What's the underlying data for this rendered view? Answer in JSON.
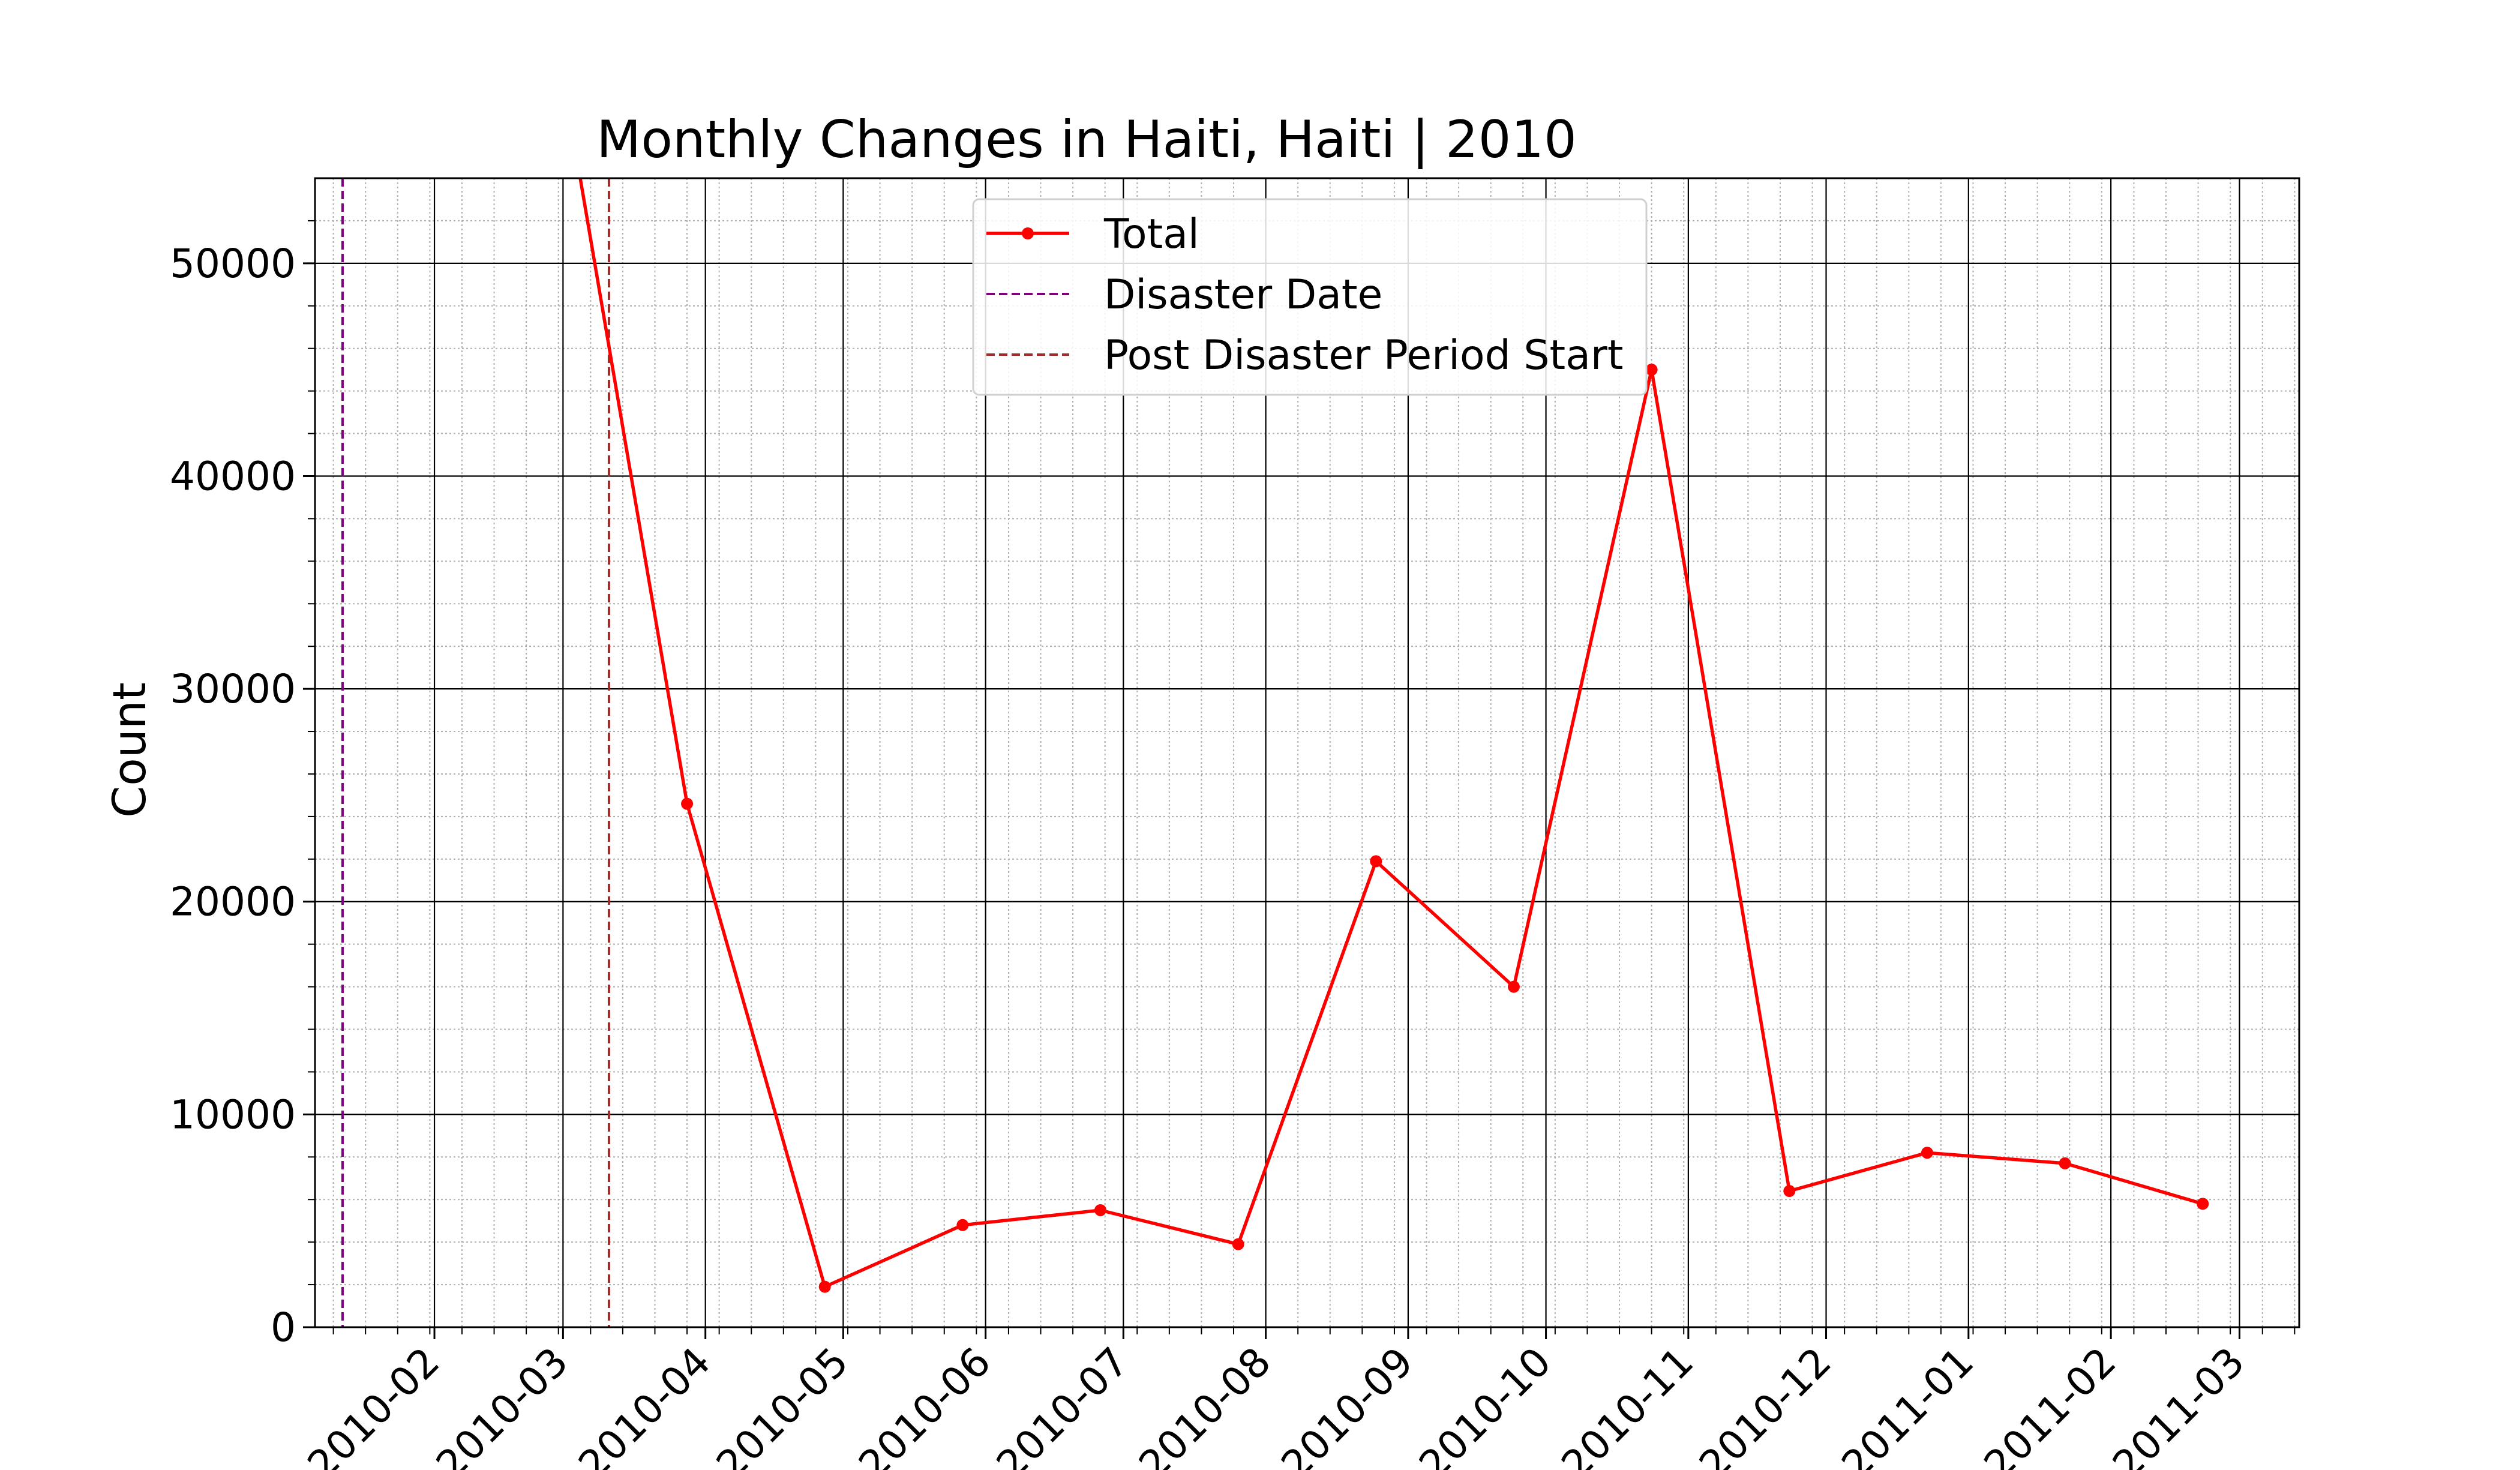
{
  "chart_data": {
    "type": "line",
    "title": "Monthly Changes in Haiti, Haiti | 2010",
    "xlabel": "",
    "ylabel": "Count",
    "x_tick_labels": [
      "2010-02",
      "2010-03",
      "2010-04",
      "2010-05",
      "2010-06",
      "2010-07",
      "2010-08",
      "2010-09",
      "2010-10",
      "2010-11",
      "2010-12",
      "2011-01",
      "2011-02",
      "2011-03"
    ],
    "y_tick_labels": [
      "0",
      "10000",
      "20000",
      "30000",
      "40000",
      "50000"
    ],
    "ylim": [
      0,
      54000
    ],
    "xlim": [
      "2010-01-06",
      "2011-03-14"
    ],
    "grid": "major solid, minor dotted",
    "legend_position": "upper center",
    "series": [
      {
        "name": "Total",
        "color": "#ff0000",
        "marker": "point",
        "x": [
          "2010-02-28",
          "2010-03-28",
          "2010-04-27",
          "2010-05-27",
          "2010-06-26",
          "2010-07-26",
          "2010-08-25",
          "2010-09-24",
          "2010-10-24",
          "2010-11-23",
          "2010-12-23",
          "2011-01-22",
          "2011-02-21"
        ],
        "values": [
          60000,
          24600,
          1900,
          4800,
          5500,
          3900,
          21900,
          16000,
          45000,
          6400,
          8200,
          7700,
          5800
        ]
      }
    ],
    "vlines": [
      {
        "name": "Disaster Date",
        "date": "2010-01-12",
        "color": "#800080",
        "style": "dashed"
      },
      {
        "name": "Post Disaster Period Start",
        "date": "2010-03-11",
        "color": "#a52a2a",
        "style": "dashed"
      }
    ]
  }
}
